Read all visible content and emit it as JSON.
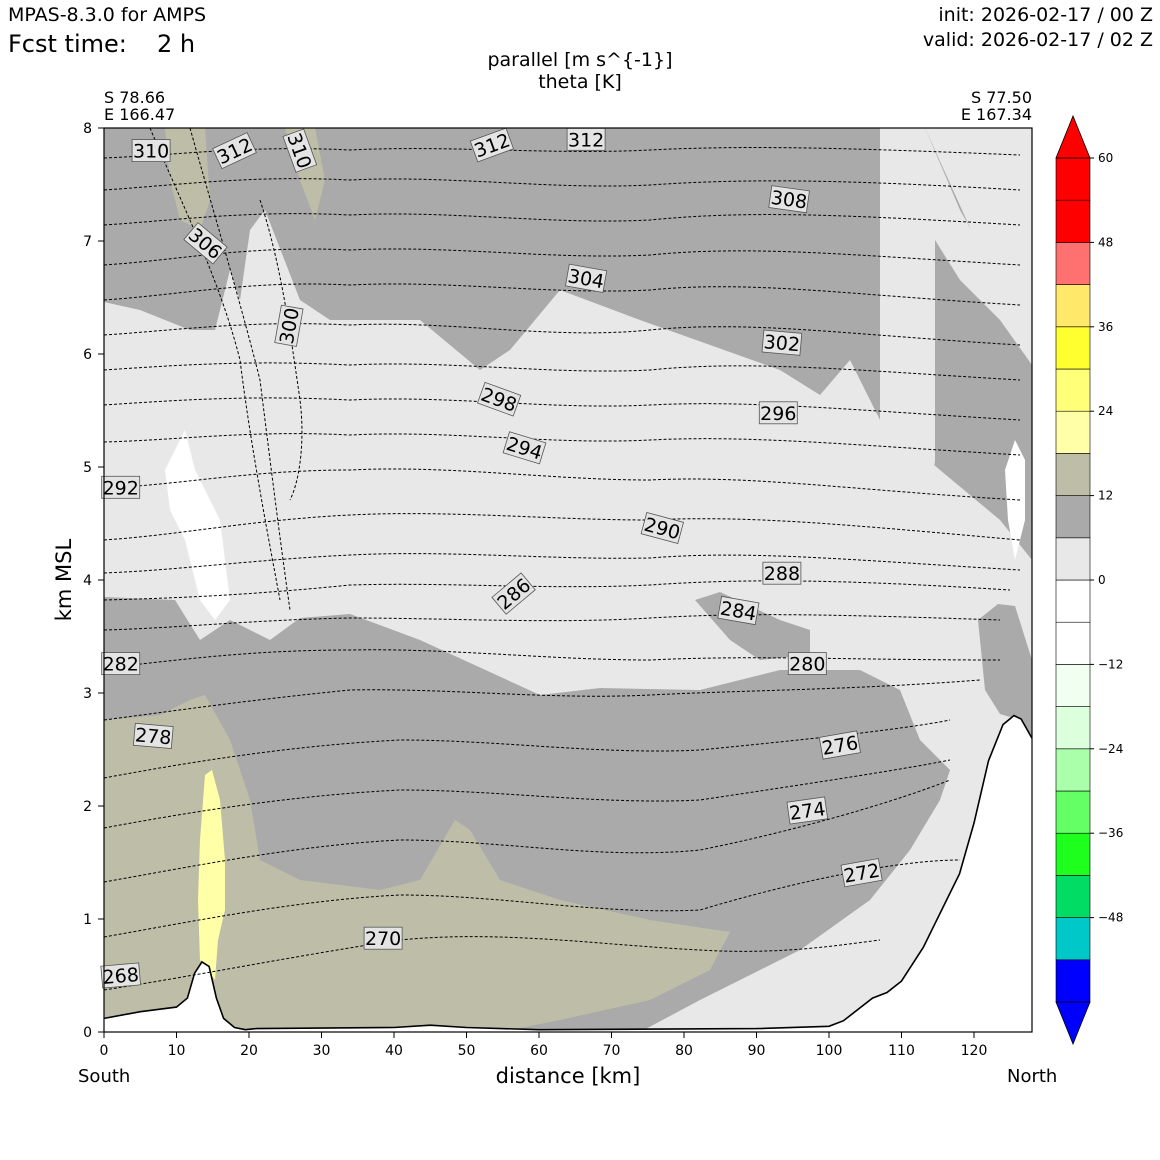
{
  "header": {
    "model": "MPAS-8.3.0 for AMPS",
    "fcst_label": "Fcst time:",
    "fcst_value": "2 h",
    "init": "init: 2026-02-17 / 00 Z",
    "valid": "valid: 2026-02-17 / 02 Z"
  },
  "chart_data": {
    "type": "contour",
    "title": [
      "parallel [m s^{-1}]",
      "theta [K]"
    ],
    "xlabel": "distance [km]",
    "ylabel": "km MSL",
    "xlim": [
      0,
      128
    ],
    "ylim": [
      0,
      8
    ],
    "xticks": [
      0,
      10,
      20,
      30,
      40,
      50,
      60,
      70,
      80,
      90,
      100,
      110,
      120
    ],
    "yticks": [
      0,
      1,
      2,
      3,
      4,
      5,
      6,
      7,
      8
    ],
    "start_point": [
      "S 78.66",
      "E 166.47"
    ],
    "end_point": [
      "S 77.50",
      "E 167.34"
    ],
    "left_end_label": "South",
    "right_end_label": "North",
    "colorbar": {
      "levels": [
        -60,
        -54,
        -48,
        -42,
        -36,
        -30,
        -24,
        -18,
        -12,
        -6,
        0,
        6,
        12,
        18,
        24,
        30,
        36,
        42,
        48,
        54,
        60
      ],
      "tick_labels": [
        "60",
        "48",
        "36",
        "24",
        "12",
        "0",
        "−12",
        "−24",
        "−36",
        "−48"
      ],
      "tick_values": [
        60,
        48,
        36,
        24,
        12,
        0,
        -12,
        -24,
        -36,
        -48
      ],
      "colors": [
        "#0000ff",
        "#00c8c8",
        "#00dc64",
        "#1eff1e",
        "#64ff64",
        "#aaffaa",
        "#dcffdc",
        "#f0fff0",
        "#ffffff",
        "#ffffff",
        "#e8e8e8",
        "#aaaaaa",
        "#bebea8",
        "#ffffa8",
        "#ffff78",
        "#ffff30",
        "#ffe86a",
        "#ff7070",
        "#ff0000"
      ],
      "extend": "both"
    },
    "theta_labels": [
      {
        "value": "310",
        "x": 6.5,
        "y": 7.8,
        "angle": 0
      },
      {
        "value": "312",
        "x": 18,
        "y": 7.8,
        "angle": -25
      },
      {
        "value": "310",
        "x": 27,
        "y": 7.8,
        "angle": 70
      },
      {
        "value": "312",
        "x": 53.5,
        "y": 7.85,
        "angle": -20
      },
      {
        "value": "312",
        "x": 66.5,
        "y": 7.9,
        "angle": 0
      },
      {
        "value": "308",
        "x": 94.5,
        "y": 7.37,
        "angle": 8
      },
      {
        "value": "306",
        "x": 14,
        "y": 6.98,
        "angle": 40
      },
      {
        "value": "304",
        "x": 66.5,
        "y": 6.67,
        "angle": 10
      },
      {
        "value": "302",
        "x": 93.5,
        "y": 6.1,
        "angle": 5
      },
      {
        "value": "300",
        "x": 25.5,
        "y": 6.25,
        "angle": -80
      },
      {
        "value": "298",
        "x": 54.5,
        "y": 5.6,
        "angle": 20
      },
      {
        "value": "296",
        "x": 93,
        "y": 5.48,
        "angle": 0
      },
      {
        "value": "294",
        "x": 58,
        "y": 5.17,
        "angle": 17
      },
      {
        "value": "292",
        "x": 2.3,
        "y": 4.82,
        "angle": 0
      },
      {
        "value": "290",
        "x": 77,
        "y": 4.46,
        "angle": 15
      },
      {
        "value": "288",
        "x": 93.5,
        "y": 4.06,
        "angle": 0
      },
      {
        "value": "286",
        "x": 56.5,
        "y": 3.88,
        "angle": -40
      },
      {
        "value": "284",
        "x": 87.5,
        "y": 3.73,
        "angle": 10
      },
      {
        "value": "282",
        "x": 2.3,
        "y": 3.26,
        "angle": 0
      },
      {
        "value": "280",
        "x": 97,
        "y": 3.26,
        "angle": 0
      },
      {
        "value": "278",
        "x": 6.8,
        "y": 2.62,
        "angle": 5
      },
      {
        "value": "276",
        "x": 101.5,
        "y": 2.54,
        "angle": -10
      },
      {
        "value": "274",
        "x": 97,
        "y": 1.96,
        "angle": -8
      },
      {
        "value": "272",
        "x": 104.5,
        "y": 1.41,
        "angle": -10
      },
      {
        "value": "270",
        "x": 38.5,
        "y": 0.83,
        "angle": 0
      },
      {
        "value": "268",
        "x": 2.3,
        "y": 0.5,
        "angle": -5
      }
    ],
    "terrain_profile": {
      "x": [
        0,
        5,
        10,
        11.5,
        12.5,
        13.5,
        14.5,
        15.5,
        16.5,
        18,
        19.5,
        21,
        40,
        45,
        50,
        60,
        90,
        100,
        102,
        106,
        108,
        110,
        113,
        118,
        120,
        122,
        124,
        125.5,
        126.5,
        128
      ],
      "y": [
        0.12,
        0.18,
        0.22,
        0.3,
        0.52,
        0.62,
        0.58,
        0.3,
        0.12,
        0.04,
        0.02,
        0.03,
        0.04,
        0.06,
        0.04,
        0.02,
        0.03,
        0.05,
        0.1,
        0.3,
        0.35,
        0.45,
        0.75,
        1.4,
        1.85,
        2.4,
        2.72,
        2.8,
        2.77,
        2.6
      ]
    }
  }
}
